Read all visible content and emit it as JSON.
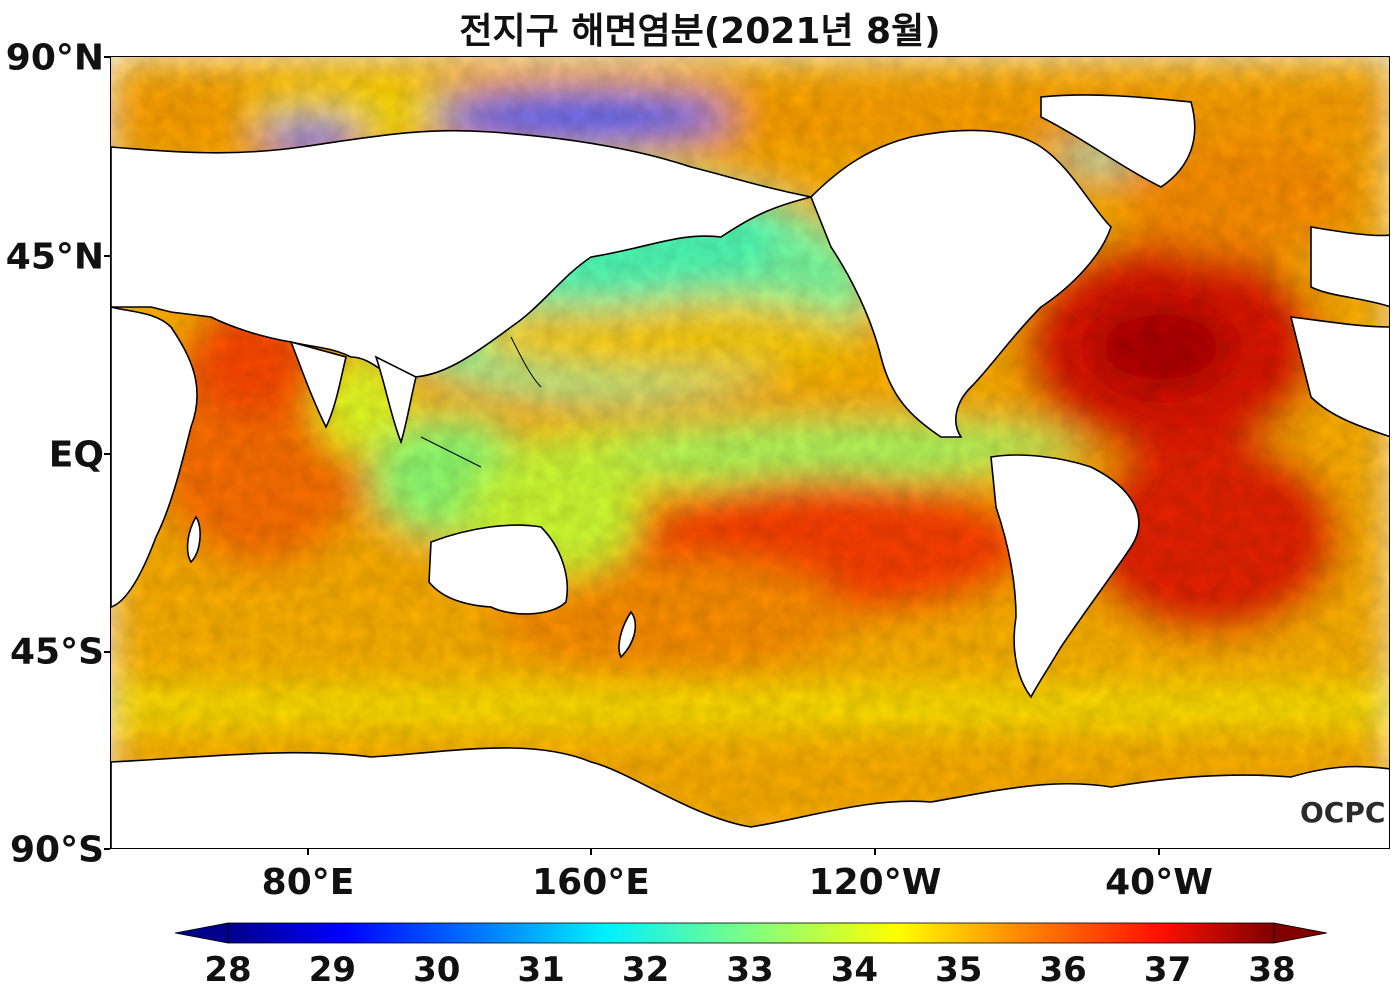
{
  "title": "전지구 해면염분(2021년 8월)",
  "watermark": "OCPC",
  "axes": {
    "lat_labels": [
      "90°N",
      "45°N",
      "EQ",
      "45°S",
      "90°S"
    ],
    "lat_values": [
      90,
      45,
      0,
      -45,
      -90
    ],
    "lon_labels": [
      "80°E",
      "160°E",
      "120°W",
      "40°W"
    ],
    "lon_values": [
      80,
      160,
      -120,
      -40
    ]
  },
  "colorbar": {
    "ticks": [
      "28",
      "29",
      "30",
      "31",
      "32",
      "33",
      "34",
      "35",
      "36",
      "37",
      "38"
    ],
    "min": 28,
    "max": 38,
    "colormap": "jet",
    "extend": "both"
  },
  "colors": {
    "low": "#00008b",
    "mid": "#ffff00",
    "high": "#800000",
    "land": "#ffffff",
    "coast": "#000000"
  }
}
